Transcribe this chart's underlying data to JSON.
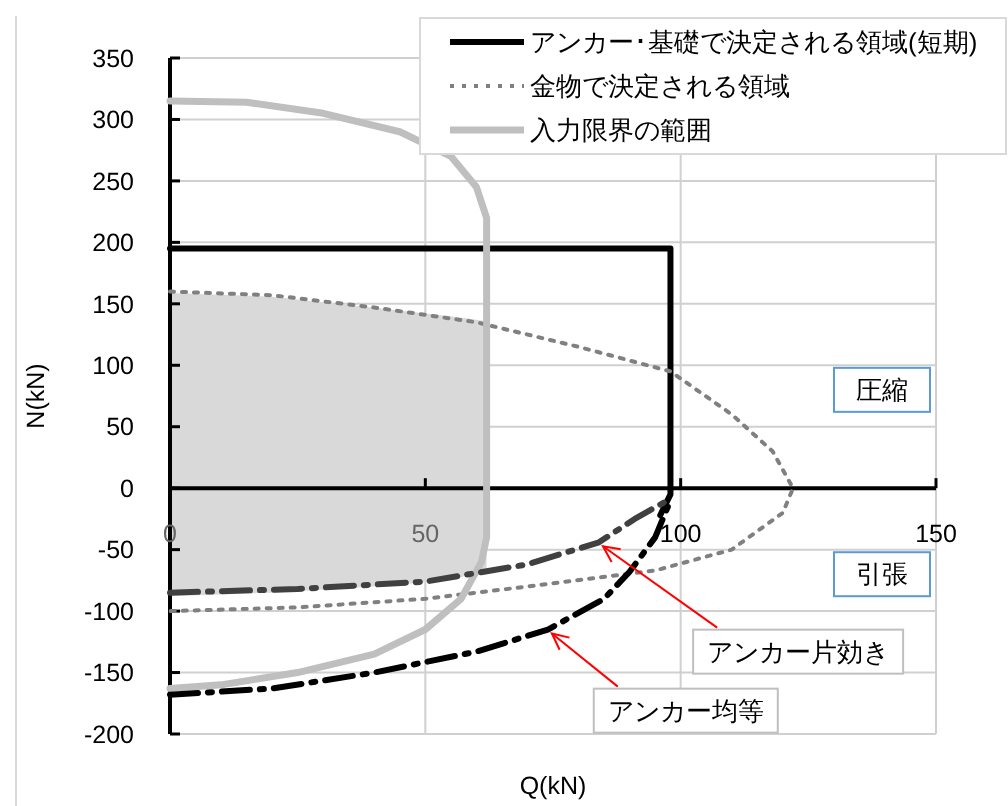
{
  "chart_data": {
    "type": "line",
    "xlabel": "Q(kN)",
    "ylabel": "N(kN)",
    "xlim": [
      0,
      150
    ],
    "xticks": [
      0,
      50,
      100,
      150
    ],
    "ylim": [
      -200,
      350
    ],
    "yticks": [
      -200,
      -150,
      -100,
      -50,
      0,
      50,
      100,
      150,
      200,
      250,
      300,
      350
    ],
    "grid": true,
    "legend": "top right",
    "marker": "none",
    "series": [
      {
        "type": "line",
        "color": "#d9d9d9",
        "x": [
          0,
          20,
          40,
          55,
          62
        ],
        "values": [
          158,
          155,
          146,
          139,
          135
        ],
        "upper": [
          158,
          155,
          146,
          139,
          135
        ],
        "lower": [
          -88,
          -85,
          -80,
          -75,
          -66
        ]
      },
      {
        "name": "アンカー･基礎で決定される領域(短期)",
        "color": "#000000",
        "line_style": "solid",
        "x": [
          0,
          98,
          98,
          98,
          96
        ],
        "values": [
          195,
          195,
          195,
          -5,
          -22
        ]
      },
      {
        "name": "金物で決定される領域",
        "color": "#808080",
        "line_style": "dotted",
        "x": [
          0,
          20,
          40,
          60,
          80,
          98,
          110,
          118,
          122,
          120,
          110,
          95,
          70,
          50,
          25,
          0
        ],
        "values": [
          160,
          157,
          147,
          135,
          115,
          95,
          60,
          30,
          0,
          -20,
          -50,
          -67,
          -80,
          -90,
          -97,
          -100
        ]
      },
      {
        "name": "入力限界の範囲",
        "color": "#bfbfbf",
        "line_style": "solid",
        "x": [
          0,
          15,
          30,
          45,
          55,
          60,
          62,
          62,
          62,
          61,
          57,
          50,
          40,
          25,
          10,
          0
        ],
        "values": [
          315,
          314,
          305,
          290,
          270,
          245,
          220,
          195,
          -40,
          -60,
          -90,
          -115,
          -135,
          -150,
          -160,
          -163
        ]
      },
      {
        "color": "#404040",
        "line_style": "dashed",
        "x": [
          0,
          25,
          50,
          70,
          84,
          91,
          97
        ],
        "values": [
          -85,
          -82,
          -76,
          -62,
          -44,
          -25,
          -11
        ]
      },
      {
        "color": "#000000",
        "line_style": "dashed",
        "x": [
          0,
          20,
          40,
          60,
          74,
          85,
          90,
          95,
          98
        ],
        "values": [
          -168,
          -163,
          -150,
          -133,
          -115,
          -90,
          -68,
          -40,
          -10
        ]
      }
    ],
    "annotations": [
      "圧縮",
      "引張",
      {
        "text": "アンカー片効き",
        "x": 84,
        "y": -44
      },
      {
        "text": "アンカー均等",
        "x": 74,
        "y": -115
      }
    ]
  }
}
